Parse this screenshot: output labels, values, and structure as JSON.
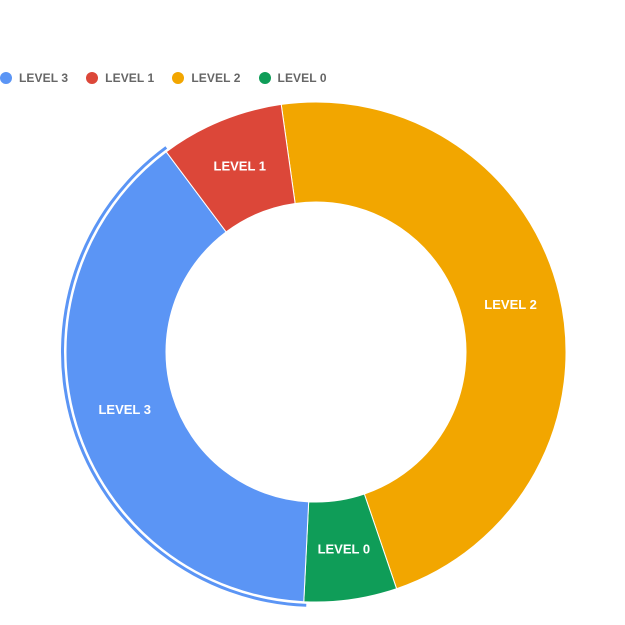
{
  "chart_data": {
    "type": "pie",
    "title": "",
    "series": [
      {
        "name": "LEVEL 3",
        "value": 39,
        "color": "#5b95f5"
      },
      {
        "name": "LEVEL 1",
        "value": 8,
        "color": "#dc4739"
      },
      {
        "name": "LEVEL 2",
        "value": 47,
        "color": "#f2a600"
      },
      {
        "name": "LEVEL 0",
        "value": 6,
        "color": "#0f9d58"
      }
    ],
    "slice_order_clockwise_from_top": [
      "LEVEL 2",
      "LEVEL 0",
      "LEVEL 3",
      "LEVEL 1"
    ],
    "start_angle_deg": -8,
    "donut": true,
    "legend_position": "top-left",
    "highlighted_series": "LEVEL 3"
  }
}
